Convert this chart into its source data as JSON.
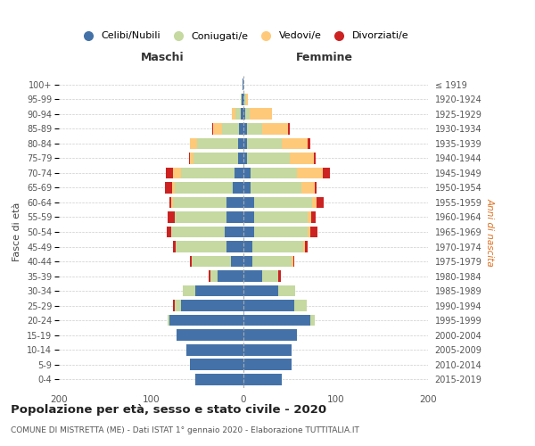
{
  "age_groups": [
    "0-4",
    "5-9",
    "10-14",
    "15-19",
    "20-24",
    "25-29",
    "30-34",
    "35-39",
    "40-44",
    "45-49",
    "50-54",
    "55-59",
    "60-64",
    "65-69",
    "70-74",
    "75-79",
    "80-84",
    "85-89",
    "90-94",
    "95-99",
    "100+"
  ],
  "birth_years": [
    "2015-2019",
    "2010-2014",
    "2005-2009",
    "2000-2004",
    "1995-1999",
    "1990-1994",
    "1985-1989",
    "1980-1984",
    "1975-1979",
    "1970-1974",
    "1965-1969",
    "1960-1964",
    "1955-1959",
    "1950-1954",
    "1945-1949",
    "1940-1944",
    "1935-1939",
    "1930-1934",
    "1925-1929",
    "1920-1924",
    "≤ 1919"
  ],
  "maschi": {
    "celibi": [
      52,
      58,
      62,
      72,
      80,
      68,
      52,
      28,
      14,
      18,
      20,
      18,
      18,
      12,
      10,
      6,
      6,
      5,
      3,
      2,
      1
    ],
    "coniugati": [
      0,
      0,
      0,
      0,
      2,
      6,
      14,
      8,
      42,
      55,
      58,
      56,
      58,
      62,
      58,
      48,
      44,
      18,
      6,
      1,
      0
    ],
    "vedovi": [
      0,
      0,
      0,
      0,
      0,
      0,
      0,
      0,
      0,
      0,
      0,
      0,
      2,
      3,
      8,
      4,
      8,
      10,
      4,
      0,
      0
    ],
    "divorziati": [
      0,
      0,
      0,
      0,
      0,
      2,
      0,
      2,
      2,
      3,
      5,
      8,
      2,
      8,
      8,
      1,
      0,
      1,
      0,
      0,
      0
    ]
  },
  "femmine": {
    "nubili": [
      42,
      52,
      52,
      58,
      72,
      55,
      38,
      20,
      10,
      10,
      12,
      12,
      12,
      8,
      8,
      4,
      4,
      4,
      2,
      1,
      0
    ],
    "coniugate": [
      0,
      0,
      0,
      0,
      5,
      14,
      18,
      18,
      42,
      55,
      58,
      58,
      62,
      55,
      50,
      46,
      38,
      16,
      5,
      2,
      0
    ],
    "vedove": [
      0,
      0,
      0,
      0,
      0,
      0,
      0,
      0,
      2,
      2,
      2,
      3,
      5,
      14,
      28,
      26,
      28,
      28,
      24,
      2,
      0
    ],
    "divorziate": [
      0,
      0,
      0,
      0,
      0,
      0,
      0,
      3,
      1,
      3,
      8,
      5,
      8,
      2,
      8,
      2,
      2,
      2,
      0,
      0,
      0
    ]
  },
  "colors": {
    "celibi": "#4472a8",
    "coniugati": "#c5d9a0",
    "vedovi": "#ffc97a",
    "divorziati": "#cc2222"
  },
  "title": "Popolazione per età, sesso e stato civile - 2020",
  "subtitle": "COMUNE DI MISTRETTA (ME) - Dati ISTAT 1° gennaio 2020 - Elaborazione TUTTITALIA.IT",
  "header_maschi": "Maschi",
  "header_femmine": "Femmine",
  "ylabel_left": "Fasce di età",
  "ylabel_right": "Anni di nascita",
  "xlim": 200,
  "legend_labels": [
    "Celibi/Nubili",
    "Coniugati/e",
    "Vedovi/e",
    "Divorziati/e"
  ]
}
